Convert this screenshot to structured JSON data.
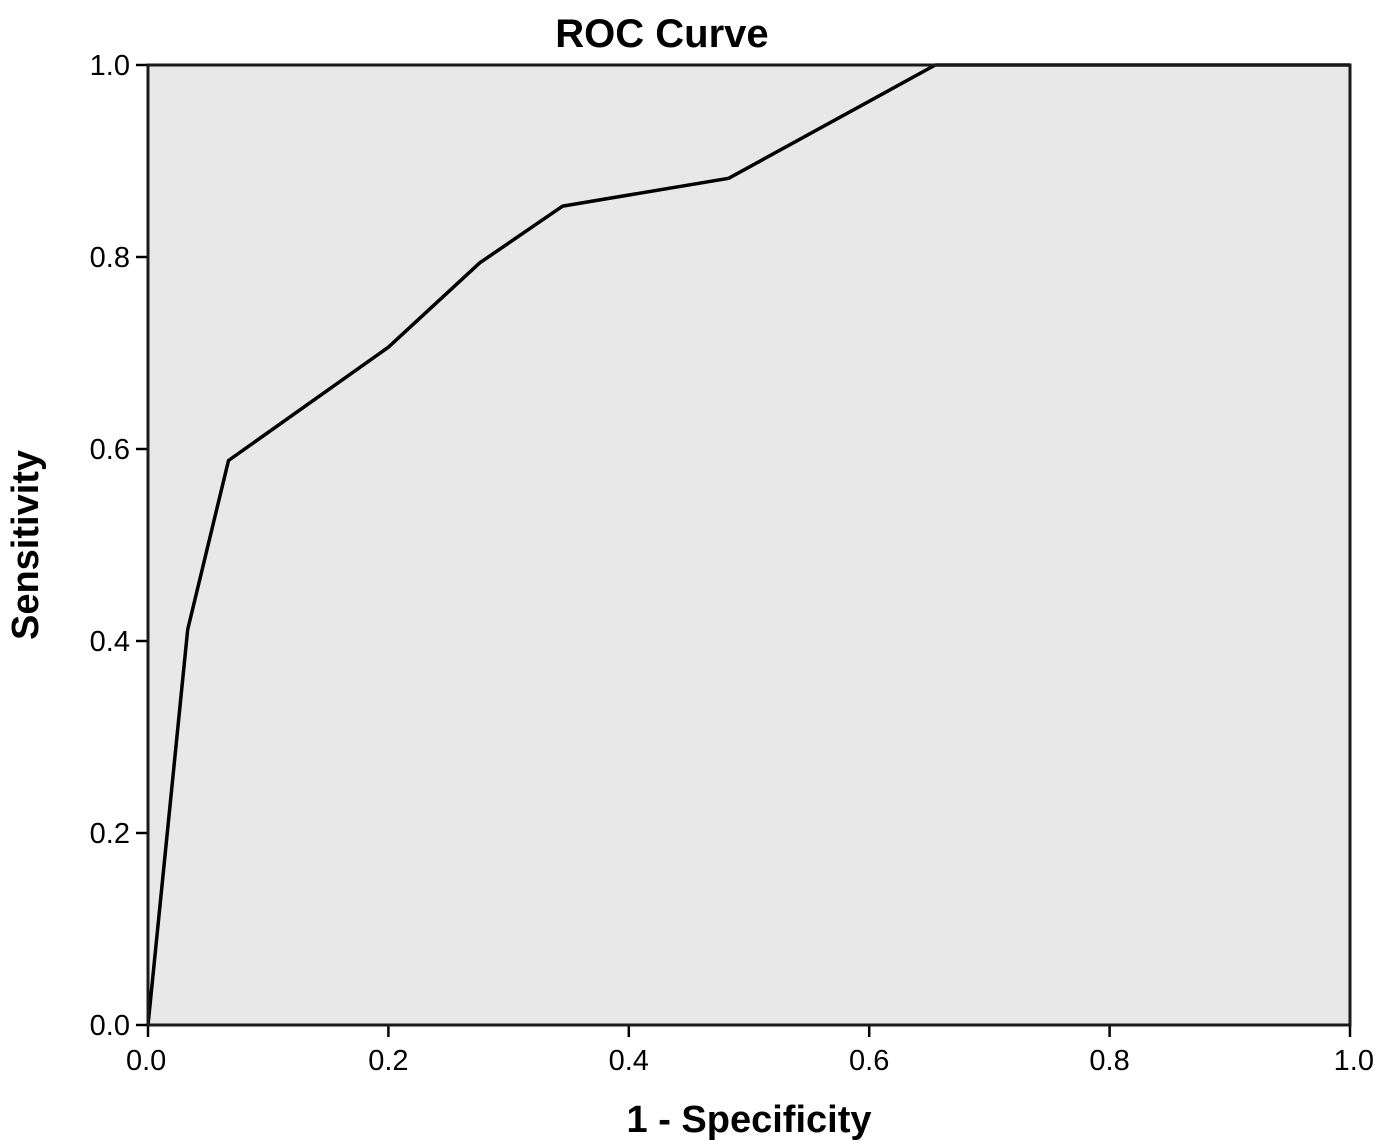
{
  "chart_data": {
    "type": "line",
    "title": "ROC Curve",
    "xlabel": "1 - Specificity",
    "ylabel": "Sensitivity",
    "xlim": [
      0.0,
      1.0
    ],
    "ylim": [
      0.0,
      1.0
    ],
    "x_ticks": [
      "0.0",
      "0.2",
      "0.4",
      "0.6",
      "0.8",
      "1.0"
    ],
    "y_ticks": [
      "0.0",
      "0.2",
      "0.4",
      "0.6",
      "0.8",
      "1.0"
    ],
    "grid": false,
    "legend": "none",
    "plot_background": "#e8e8e8",
    "line_color": "#000000",
    "series": [
      {
        "x": [
          0.0,
          0.033,
          0.067,
          0.2,
          0.276,
          0.345,
          0.483,
          0.655,
          1.0
        ],
        "y": [
          0.0,
          0.412,
          0.588,
          0.706,
          0.794,
          0.853,
          0.882,
          1.0,
          1.0
        ]
      }
    ]
  }
}
